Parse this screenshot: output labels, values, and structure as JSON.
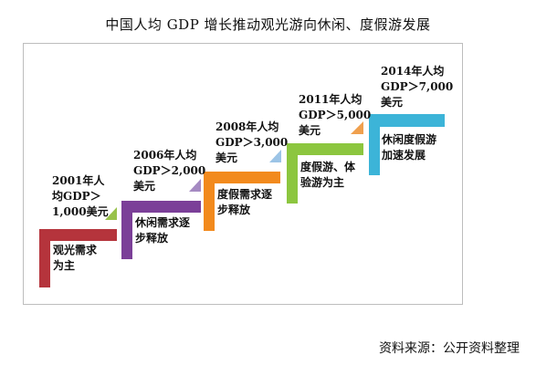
{
  "title": "中国人均 GDP 增长推动观光游向休闲、度假游发展",
  "stages": [
    {
      "gdp_lines": [
        "2001年人",
        "均GDP＞",
        "1,000美元"
      ],
      "desc_lines": [
        "观光需求",
        "为主"
      ],
      "color": "#b5343c"
    },
    {
      "gdp_lines": [
        "2006年人均",
        "GDP＞2,000",
        "美元"
      ],
      "desc_lines": [
        "休闲需求逐",
        "步释放"
      ],
      "color": "#7b3f98"
    },
    {
      "gdp_lines": [
        "2008年人均",
        "GDP＞3,000",
        "美元"
      ],
      "desc_lines": [
        "度假需求逐",
        "步释放"
      ],
      "color": "#f28a1d"
    },
    {
      "gdp_lines": [
        "2011年人均",
        "GDP＞5,000",
        "美元"
      ],
      "desc_lines": [
        "度假游、体",
        "验游为主"
      ],
      "color": "#8cc63f"
    },
    {
      "gdp_lines": [
        "2014年人均",
        "GDP＞7,000",
        "美元"
      ],
      "desc_lines": [
        "休闲度假游",
        "加速发展"
      ],
      "color": "#3cb4d8"
    }
  ],
  "source": "资料来源：公开资料整理"
}
